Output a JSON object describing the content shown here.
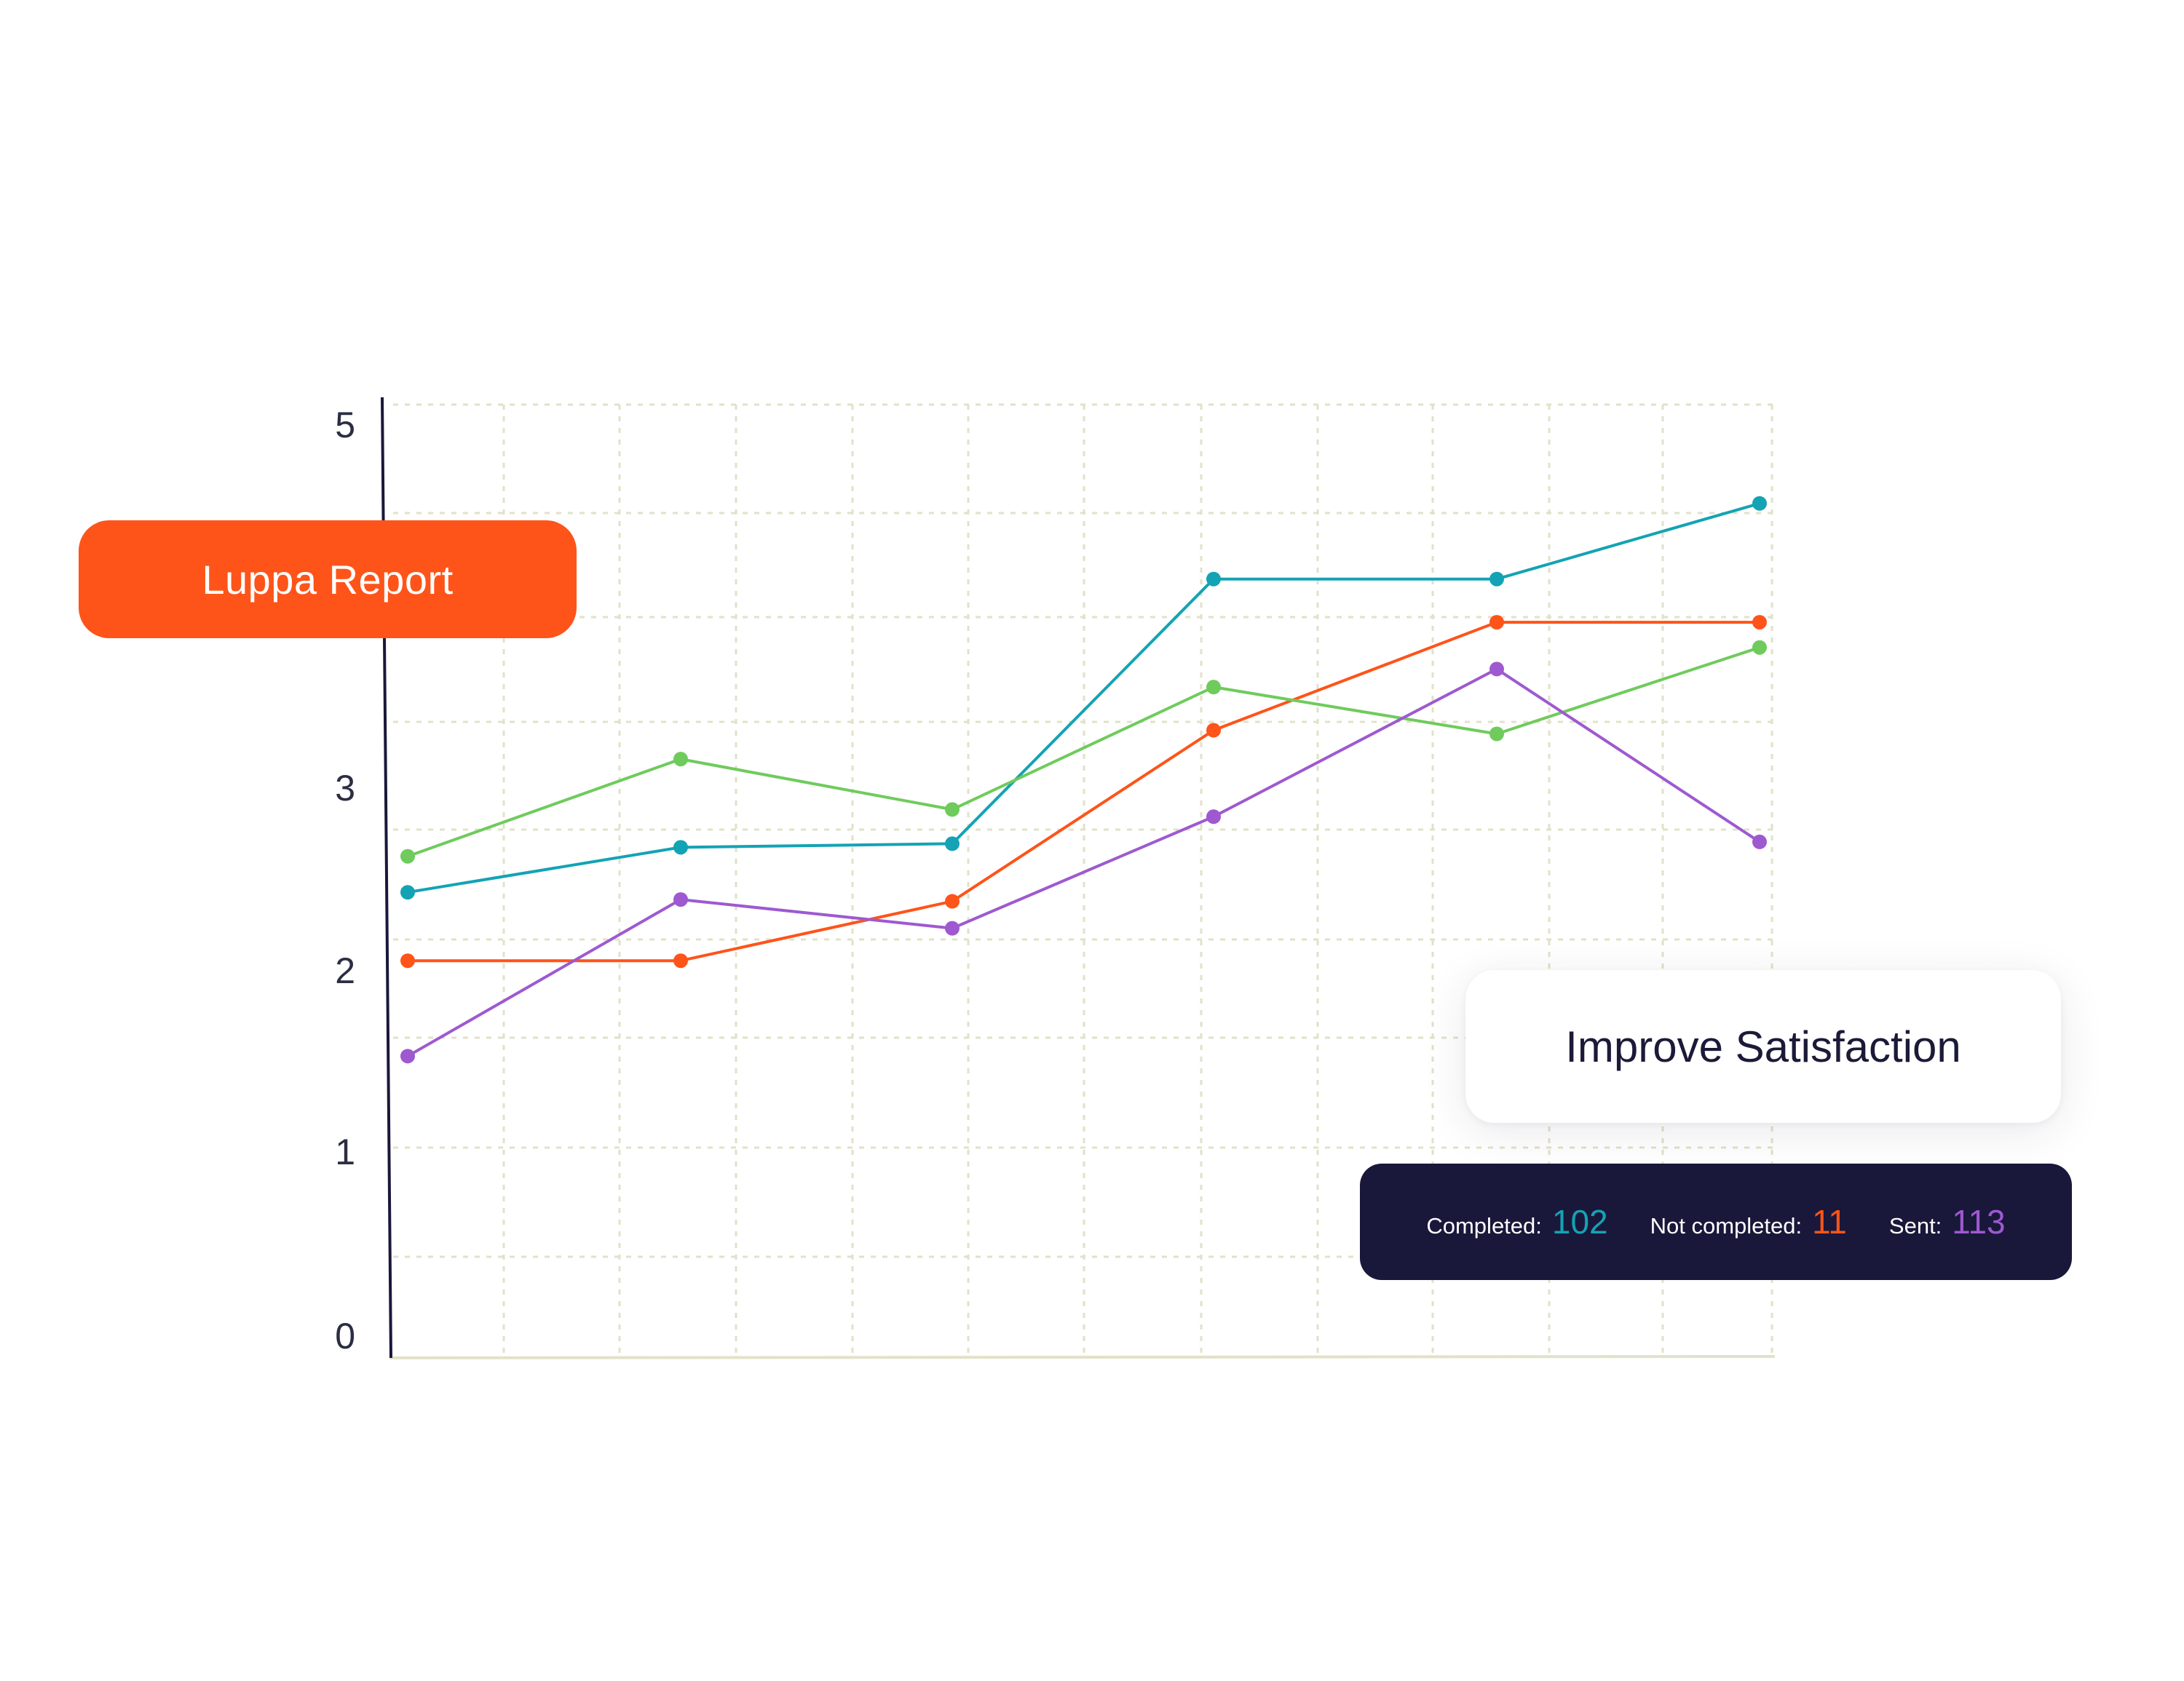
{
  "chart_data": {
    "type": "line",
    "y_ticks": [
      "0",
      "1",
      "2",
      "3",
      "5"
    ],
    "ylim": [
      0,
      5
    ],
    "x": [
      1,
      2,
      3,
      4,
      5,
      6
    ],
    "grid": true,
    "legend": "none",
    "series": [
      {
        "color": "#13a3b4",
        "values": [
          2.38,
          2.63,
          2.65,
          4.12,
          4.12,
          4.54
        ]
      },
      {
        "color": "#fe5419",
        "values": [
          2.0,
          2.0,
          2.33,
          3.28,
          3.88,
          3.88
        ]
      },
      {
        "color": "#6fcb5c",
        "values": [
          2.58,
          3.12,
          2.84,
          3.52,
          3.26,
          3.74
        ]
      },
      {
        "color": "#9e59d0",
        "values": [
          1.47,
          2.34,
          2.18,
          2.8,
          3.62,
          2.66
        ]
      }
    ]
  },
  "report_label": "Luppa Report",
  "card_title": "Improve Satisfaction",
  "stats": {
    "completed_label": "Completed:",
    "completed_value": "102",
    "not_completed_label": "Not completed:",
    "not_completed_value": "11",
    "sent_label": "Sent:",
    "sent_value": "113"
  },
  "colors": {
    "accent": "#fe5419",
    "completed": "#13a3b4",
    "not_completed": "#fe5419",
    "sent": "#9e59d0",
    "grid": "#e2e1c9",
    "dark": "#19183a"
  }
}
